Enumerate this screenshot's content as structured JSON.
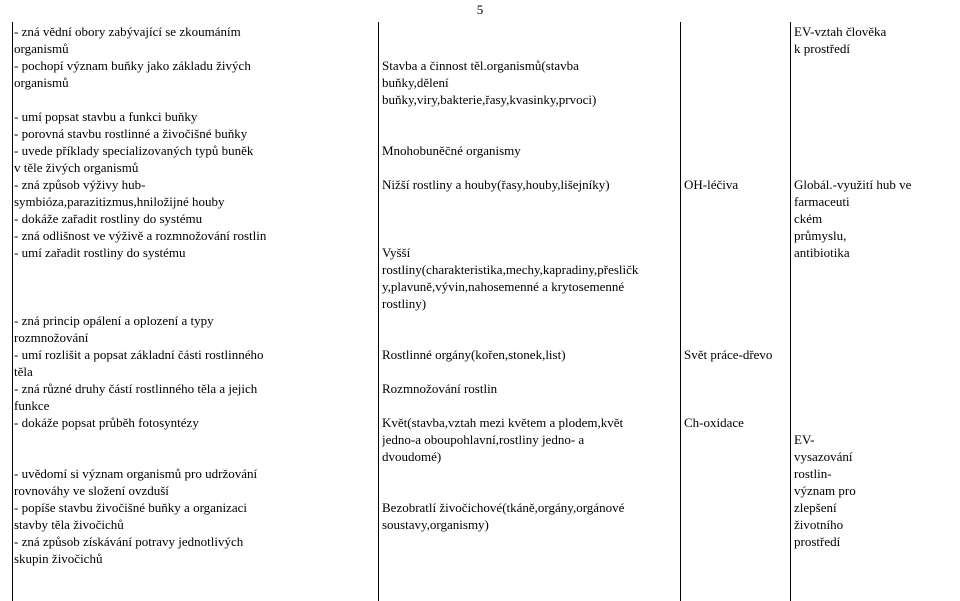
{
  "page_number": "5",
  "col1": {
    "r0": "- zná vědní obory zabývající se zkoumáním",
    "r1": "organismů",
    "r2": "- pochopí význam buňky jako základu živých",
    "r3": "organismů",
    "r4": "",
    "r5": "- umí popsat stavbu a funkci buňky",
    "r6": "- porovná stavbu rostlinné a živočišné buňky",
    "r7": "- uvede příklady specializovaných typů buněk",
    "r8": "v těle živých organismů",
    "r9": "- zná způsob výživy hub-",
    "r10": "symbióza,parazitizmus,hniložijné houby",
    "r11": "- dokáže zařadit rostliny do systému",
    "r12": "- zná odlišnost ve výživě a rozmnožování rostlin",
    "r13": "- umí zařadit rostliny do systému",
    "r14": "",
    "r15": "",
    "r16": "",
    "r17": "- zná princip opálení a oplození a typy",
    "r18": "rozmnožování",
    "r19": "- umí rozlišit a popsat základní části rostlinného",
    "r20": "těla",
    "r21": "- zná různé druhy částí rostlinného těla a jejich",
    "r22": "funkce",
    "r23": "- dokáže popsat průběh fotosyntézy",
    "r24": "",
    "r25": "",
    "r26": "- uvědomí si význam organismů pro udržování",
    "r27": "rovnováhy ve složení ovzduší",
    "r28": "- popíše stavbu živočišné buňky a organizaci",
    "r29": "stavby těla živočichů",
    "r30": "- zná způsob získávání potravy jednotlivých",
    "r31": "skupin živočichů"
  },
  "col2": {
    "r0": "",
    "r1": "",
    "r2": "Stavba a činnost těl.organismů(stavba",
    "r3": "buňky,dělení",
    "r4": "buňky,viry,bakterie,řasy,kvasinky,prvoci)",
    "r5": "",
    "r6": "",
    "r7": "Mnohobuněčné organismy",
    "r8": "",
    "r9": "Nižší rostliny a houby(řasy,houby,lišejníky)",
    "r10": "",
    "r11": "",
    "r12": "",
    "r13": "Vyšší",
    "r14": "rostliny(charakteristika,mechy,kapradiny,přesličk",
    "r15": "y,plavuně,vývin,nahosemenné a krytosemenné",
    "r16": "rostliny)",
    "r17": "",
    "r18": "",
    "r19": "Rostlinné orgány(kořen,stonek,list)",
    "r20": "",
    "r21": "Rozmnožování rostlin",
    "r22": "",
    "r23": "Květ(stavba,vztah mezi květem a plodem,květ",
    "r24": "jedno-a oboupohlavní,rostliny jedno- a",
    "r25": "dvoudomé)",
    "r26": "",
    "r27": "",
    "r28": "Bezobratlí živočichové(tkáně,orgány,orgánové",
    "r29": "soustavy,organismy)",
    "r30": "",
    "r31": ""
  },
  "col3": {
    "r0": "",
    "r1": "",
    "r2": "",
    "r3": "",
    "r4": "",
    "r5": "",
    "r6": "",
    "r7": "",
    "r8": "",
    "r9": "OH-léčiva",
    "r10": "",
    "r11": "",
    "r12": "",
    "r13": "",
    "r14": "",
    "r15": "",
    "r16": "",
    "r17": "",
    "r18": "",
    "r19": "Svět práce-dřevo",
    "r20": "",
    "r21": "",
    "r22": "",
    "r23": "Ch-oxidace",
    "r24": "",
    "r25": "",
    "r26": "",
    "r27": "",
    "r28": "",
    "r29": "",
    "r30": "",
    "r31": ""
  },
  "col4": {
    "r0": "EV-vztah člověka",
    "r1": "k prostředí",
    "r2": "",
    "r3": "",
    "r4": "",
    "r5": "",
    "r6": "",
    "r7": "",
    "r8": "",
    "r9": "Globál.-využití hub ve",
    "r10": "farmaceuti",
    "r11": "ckém",
    "r12": "průmyslu,",
    "r13": "antibiotika",
    "r14": "",
    "r15": "",
    "r16": "",
    "r17": "",
    "r18": "",
    "r19": "",
    "r20": "",
    "r21": "",
    "r22": "",
    "r23": "",
    "r24": "EV-",
    "r25": "vysazování",
    "r26": "rostlin-",
    "r27": "význam pro",
    "r28": "zlepšení",
    "r29": "životního",
    "r30": "prostředí",
    "r31": ""
  }
}
